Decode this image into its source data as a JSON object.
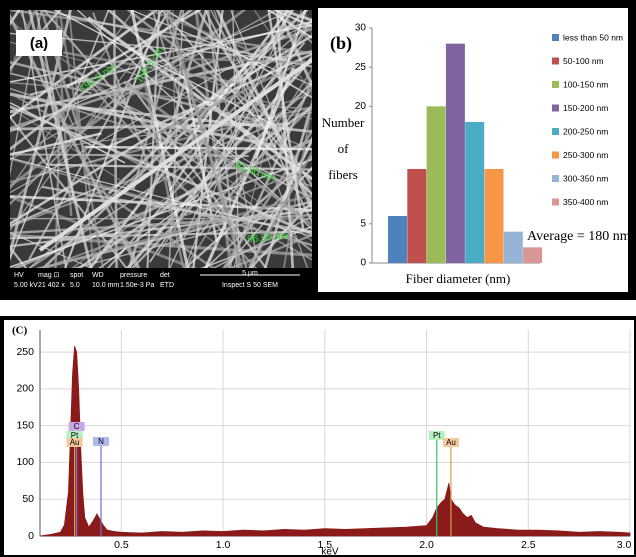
{
  "image_panel": {
    "label": "(a)",
    "measurements": [
      "192.5 nm",
      "150.3 nm",
      "91.50 nm",
      "96.50 nm"
    ],
    "info_headers": [
      "HV",
      "mag ⊡",
      "spot",
      "WD",
      "pressure",
      "det"
    ],
    "info_values": [
      "5.00 kV",
      "21 402 x",
      "5.0",
      "10.0 mm",
      "1.50e-3 Pa",
      "ETD"
    ],
    "scale": "5 μm",
    "instrument": "Inspect S 50 SEM"
  },
  "chart_data": [
    {
      "type": "bar",
      "label": "(b)",
      "y_label": [
        "Number",
        "of",
        "fibers"
      ],
      "x_label": "Fiber diameter (nm)",
      "annotation": "Average = 180 nm",
      "categories": [
        "less than 50 nm",
        "50-100 nm",
        "100-150 nm",
        "150-200 nm",
        "200-250 nm",
        "250-300 nm",
        "300-350 nm",
        "350-400 nm"
      ],
      "values": [
        6,
        12,
        20,
        28,
        18,
        12,
        4,
        2
      ],
      "colors": [
        "#4f81bd",
        "#c0504d",
        "#9bbb59",
        "#8064a2",
        "#4bacc6",
        "#f79646",
        "#95b3d7",
        "#d99694"
      ],
      "ylim": [
        0,
        30
      ],
      "yticks": [
        0,
        5,
        20,
        25,
        30
      ],
      "legend": "right"
    },
    {
      "type": "area",
      "label": "(C)",
      "x_label": "keV",
      "color": "#8b1a1a",
      "grid": true,
      "x": [
        0.1,
        0.15,
        0.2,
        0.22,
        0.24,
        0.25,
        0.26,
        0.27,
        0.28,
        0.29,
        0.3,
        0.31,
        0.32,
        0.34,
        0.36,
        0.38,
        0.39,
        0.41,
        0.43,
        0.47,
        0.5,
        0.6,
        0.7,
        0.8,
        0.9,
        1.0,
        1.1,
        1.2,
        1.3,
        1.4,
        1.5,
        1.6,
        1.7,
        1.8,
        1.9,
        2.0,
        2.03,
        2.05,
        2.07,
        2.09,
        2.11,
        2.12,
        2.14,
        2.16,
        2.18,
        2.2,
        2.22,
        2.24,
        2.28,
        2.35,
        2.45,
        2.55,
        2.65,
        2.75,
        2.85,
        2.95,
        3.0
      ],
      "values": [
        0,
        2,
        5,
        15,
        60,
        140,
        220,
        258,
        250,
        200,
        120,
        60,
        25,
        12,
        20,
        30,
        25,
        15,
        8,
        6,
        5,
        4,
        6,
        5,
        7,
        6,
        8,
        7,
        9,
        8,
        10,
        9,
        10,
        11,
        12,
        14,
        25,
        38,
        45,
        50,
        72,
        50,
        42,
        38,
        30,
        25,
        28,
        18,
        12,
        10,
        8,
        8,
        7,
        5,
        6,
        5,
        4
      ],
      "annotations": [
        {
          "text": "C",
          "x": 0.28,
          "color": "#c9a6e8"
        },
        {
          "text": "Pt",
          "x": 0.27,
          "color": "#b5f0c0"
        },
        {
          "text": "Au",
          "x": 0.27,
          "color": "#f5c89a"
        },
        {
          "text": "N",
          "x": 0.4,
          "color": "#b0b8f0"
        },
        {
          "text": "Pt",
          "x": 2.05,
          "color": "#b5f0c0"
        },
        {
          "text": "Au",
          "x": 2.12,
          "color": "#f5c89a"
        }
      ],
      "xlim": [
        0.1,
        3.0
      ],
      "ylim": [
        0,
        280
      ],
      "xticks": [
        0.5,
        {
          "value": 1,
          "label": "1.0"
        },
        1.5,
        {
          "value": 2,
          "label": "2.0"
        },
        2.5,
        {
          "value": 3,
          "label": "3.0"
        }
      ],
      "yticks": [
        0,
        50,
        100,
        150,
        200,
        250
      ]
    }
  ]
}
